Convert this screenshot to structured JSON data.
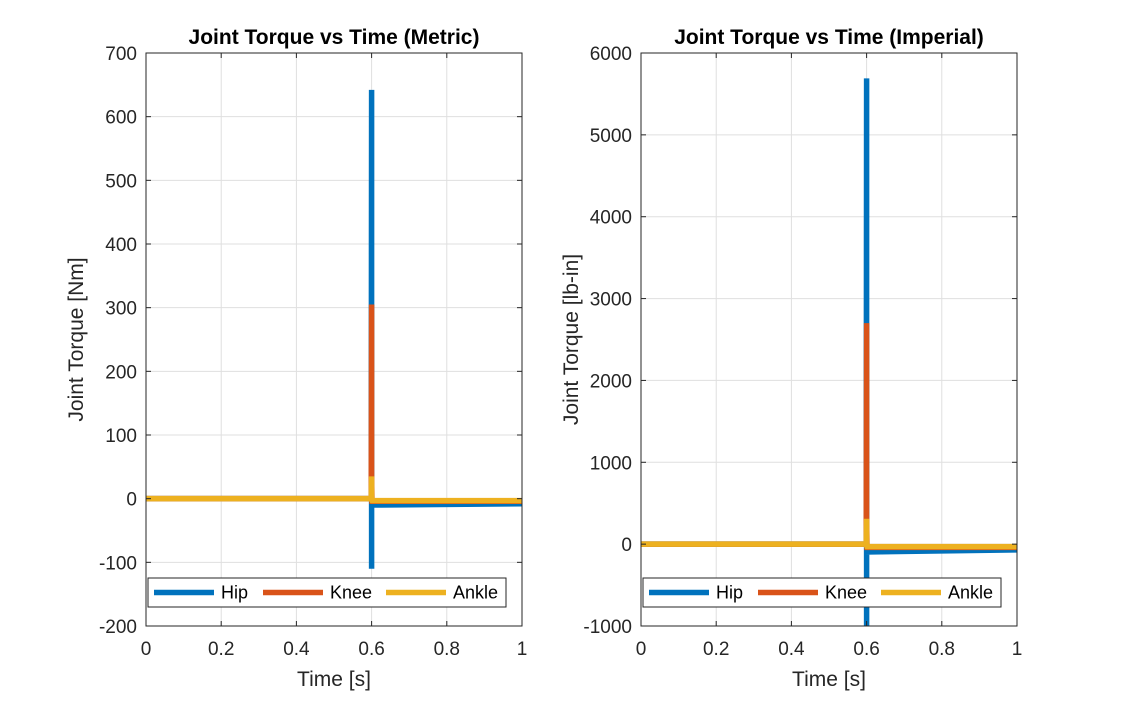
{
  "chart_data": [
    {
      "type": "line",
      "title": "Joint Torque vs Time (Metric)",
      "xlabel": "Time [s]",
      "ylabel": "Joint Torque [Nm]",
      "xlim": [
        0,
        1
      ],
      "ylim": [
        -200,
        700
      ],
      "xticks": [
        0,
        0.2,
        0.4,
        0.6,
        0.8,
        1
      ],
      "xtick_labels": [
        "0",
        "0.2",
        "0.4",
        "0.6",
        "0.8",
        "1"
      ],
      "yticks": [
        -200,
        -100,
        0,
        100,
        200,
        300,
        400,
        500,
        600,
        700
      ],
      "ytick_labels": [
        "-200",
        "-100",
        "0",
        "100",
        "200",
        "300",
        "400",
        "500",
        "600",
        "700"
      ],
      "grid": true,
      "legend_position": "bottom",
      "series": [
        {
          "name": "Hip",
          "color": "#0072BD",
          "x": [
            0,
            0.59,
            0.599,
            0.6,
            0.6,
            0.6,
            0.601,
            1
          ],
          "y": [
            0,
            0,
            0,
            642,
            -110,
            -8,
            -10,
            -8
          ]
        },
        {
          "name": "Knee",
          "color": "#D95319",
          "x": [
            0,
            0.59,
            0.599,
            0.6,
            0.6,
            0.601,
            1
          ],
          "y": [
            0,
            0,
            0,
            305,
            35,
            -4,
            -4
          ]
        },
        {
          "name": "Ankle",
          "color": "#EDB120",
          "x": [
            0,
            0.59,
            0.599,
            0.6,
            0.6,
            0.601,
            1
          ],
          "y": [
            0,
            0,
            0,
            35,
            -2,
            -3,
            -3
          ]
        }
      ]
    },
    {
      "type": "line",
      "title": "Joint Torque vs Time (Imperial)",
      "xlabel": "Time [s]",
      "ylabel": "Joint Torque [lb-in]",
      "xlim": [
        0,
        1
      ],
      "ylim": [
        -1000,
        6000
      ],
      "xticks": [
        0,
        0.2,
        0.4,
        0.6,
        0.8,
        1
      ],
      "xtick_labels": [
        "0",
        "0.2",
        "0.4",
        "0.6",
        "0.8",
        "1"
      ],
      "yticks": [
        -1000,
        0,
        1000,
        2000,
        3000,
        4000,
        5000,
        6000
      ],
      "ytick_labels": [
        "-1000",
        "0",
        "1000",
        "2000",
        "3000",
        "4000",
        "5000",
        "6000"
      ],
      "grid": true,
      "legend_position": "bottom",
      "series": [
        {
          "name": "Hip",
          "color": "#0072BD",
          "x": [
            0,
            0.59,
            0.599,
            0.6,
            0.6,
            0.6,
            0.601,
            1
          ],
          "y": [
            0,
            0,
            0,
            5690,
            -1000,
            -80,
            -95,
            -70
          ]
        },
        {
          "name": "Knee",
          "color": "#D95319",
          "x": [
            0,
            0.59,
            0.599,
            0.6,
            0.6,
            0.601,
            1
          ],
          "y": [
            0,
            0,
            0,
            2700,
            320,
            -40,
            -40
          ]
        },
        {
          "name": "Ankle",
          "color": "#EDB120",
          "x": [
            0,
            0.59,
            0.599,
            0.6,
            0.6,
            0.601,
            1
          ],
          "y": [
            0,
            0,
            0,
            310,
            -20,
            -30,
            -30
          ]
        }
      ]
    }
  ]
}
